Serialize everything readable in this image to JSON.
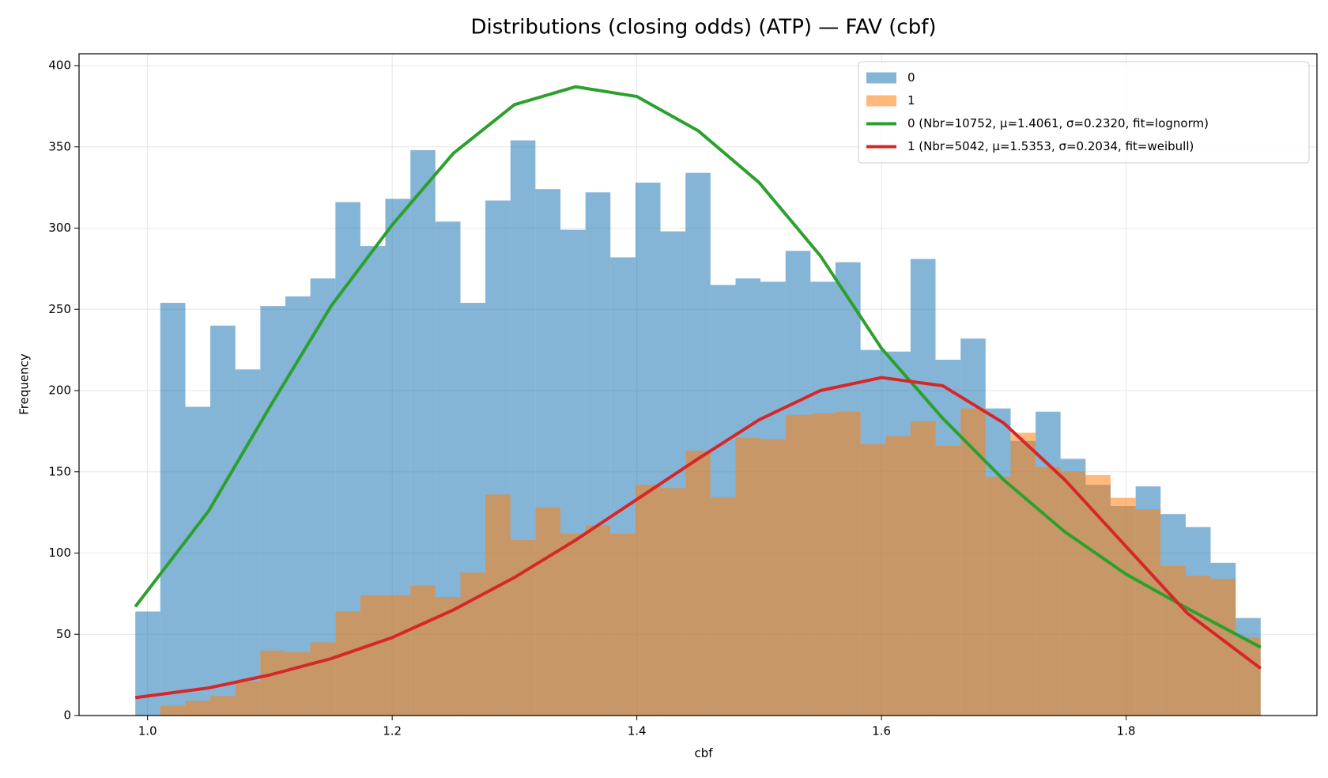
{
  "chart_data": {
    "type": "histogram",
    "title": "Distributions (closing odds) (ATP) — FAV (cbf)",
    "x_label": "cbf",
    "y_label": "Frequency",
    "bins": [
      0.99,
      1.0104,
      1.0309,
      1.0513,
      1.0718,
      1.0922,
      1.1127,
      1.1331,
      1.1536,
      1.174,
      1.1944,
      1.2149,
      1.2353,
      1.2558,
      1.2762,
      1.2967,
      1.3171,
      1.3376,
      1.358,
      1.3784,
      1.3989,
      1.4193,
      1.4398,
      1.4602,
      1.4807,
      1.5011,
      1.5216,
      1.542,
      1.5624,
      1.5829,
      1.6033,
      1.6238,
      1.6442,
      1.6647,
      1.6851,
      1.7056,
      1.726,
      1.7464,
      1.7669,
      1.7873,
      1.8078,
      1.8282,
      1.8487,
      1.8691,
      1.8896,
      1.91
    ],
    "series": [
      {
        "name": "0",
        "color": "#1f77b4",
        "values": [
          64,
          254,
          190,
          240,
          213,
          252,
          258,
          269,
          316,
          289,
          318,
          348,
          304,
          254,
          317,
          354,
          324,
          299,
          322,
          282,
          328,
          298,
          334,
          265,
          269,
          267,
          286,
          267,
          279,
          225,
          224,
          281,
          219,
          232,
          189,
          169,
          187,
          158,
          142,
          129,
          141,
          124,
          116,
          94,
          60
        ]
      },
      {
        "name": "1",
        "color": "#ff7f0e",
        "values": [
          0,
          6,
          9,
          12,
          21,
          40,
          39,
          45,
          64,
          74,
          74,
          80,
          73,
          88,
          136,
          108,
          128,
          112,
          117,
          112,
          142,
          140,
          163,
          134,
          171,
          170,
          185,
          186,
          187,
          167,
          172,
          181,
          166,
          189,
          147,
          174,
          153,
          150,
          148,
          134,
          127,
          92,
          86,
          84,
          48
        ]
      }
    ],
    "lines": [
      {
        "name": "0 (Nbr=10752, μ=1.4061, σ=0.2320, fit=lognorm)",
        "color": "#2ca02c",
        "x": [
          0.99,
          1.05,
          1.1,
          1.15,
          1.2,
          1.25,
          1.3,
          1.35,
          1.4,
          1.45,
          1.5,
          1.55,
          1.6,
          1.65,
          1.7,
          1.75,
          1.8,
          1.85,
          1.91
        ],
        "values": [
          67,
          126,
          190,
          252,
          302,
          346,
          376,
          387,
          381,
          360,
          328,
          283,
          226,
          183,
          145,
          113,
          87,
          66,
          42
        ]
      },
      {
        "name": "1 (Nbr=5042, μ=1.5353, σ=0.2034, fit=weibull)",
        "color": "#d62728",
        "x": [
          0.99,
          1.05,
          1.1,
          1.15,
          1.2,
          1.25,
          1.3,
          1.35,
          1.4,
          1.45,
          1.5,
          1.55,
          1.6,
          1.65,
          1.7,
          1.75,
          1.8,
          1.85,
          1.91
        ],
        "values": [
          11,
          17,
          25,
          35,
          48,
          65,
          85,
          108,
          133,
          158,
          182,
          200,
          208,
          203,
          180,
          145,
          104,
          63,
          29
        ]
      }
    ],
    "xlim": [
      0.944,
      1.956
    ],
    "ylim": [
      0,
      407.3
    ],
    "xticks": [
      {
        "value": 1,
        "label": "1.0"
      },
      1.2,
      1.4,
      1.6,
      1.8
    ],
    "yticks": [
      0,
      50,
      100,
      150,
      200,
      250,
      300,
      350,
      400
    ],
    "grid": true,
    "legend": "upper right"
  }
}
